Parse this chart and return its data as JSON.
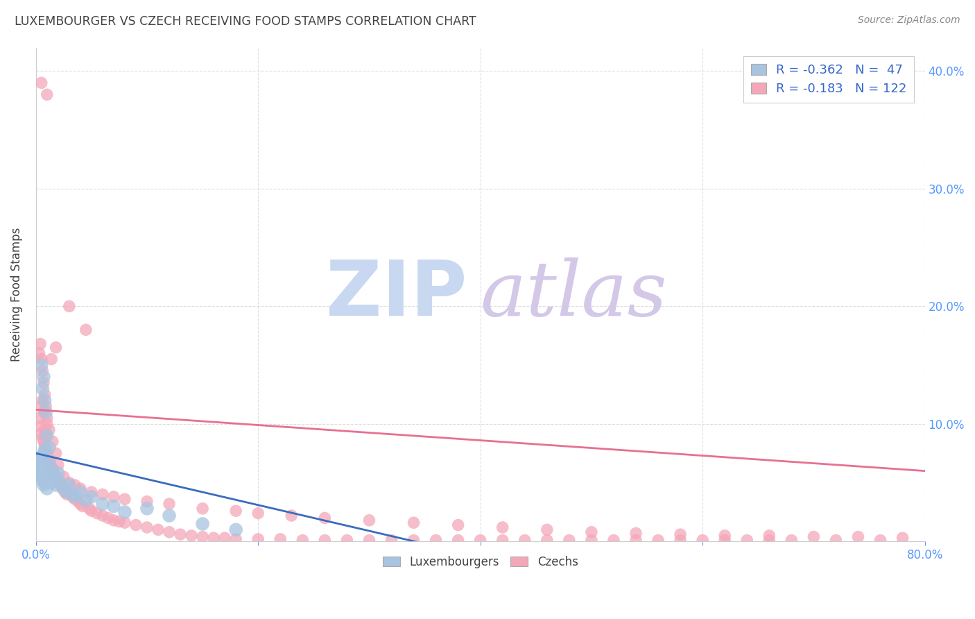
{
  "title": "LUXEMBOURGER VS CZECH RECEIVING FOOD STAMPS CORRELATION CHART",
  "source": "Source: ZipAtlas.com",
  "ylabel": "Receiving Food Stamps",
  "xlim": [
    0.0,
    0.8
  ],
  "ylim": [
    0.0,
    0.42
  ],
  "xticks": [
    0.0,
    0.2,
    0.4,
    0.6,
    0.8
  ],
  "xticklabels": [
    "0.0%",
    "",
    "",
    "",
    "80.0%"
  ],
  "yticks_right": [
    0.0,
    0.1,
    0.2,
    0.3,
    0.4
  ],
  "yticklabels_right": [
    "",
    "10.0%",
    "20.0%",
    "30.0%",
    "40.0%"
  ],
  "legend_r_lux": "-0.362",
  "legend_n_lux": "47",
  "legend_r_czech": "-0.183",
  "legend_n_czech": "122",
  "lux_color": "#a8c4e0",
  "czech_color": "#f4a7b9",
  "lux_line_color": "#3a6bbf",
  "czech_line_color": "#e87090",
  "watermark_zip": "ZIP",
  "watermark_atlas": "atlas",
  "watermark_color_zip": "#c8d8f0",
  "watermark_color_atlas": "#d4c8e8",
  "background_color": "#ffffff",
  "grid_color": "#dddddd",
  "tick_color": "#5599ff",
  "title_color": "#444444",
  "source_color": "#888888",
  "ylabel_color": "#444444",
  "legend_text_color": "#3366cc",
  "legend_edge_color": "#cccccc",
  "bottom_legend_color": "#444444",
  "lux_scatter_x": [
    0.002,
    0.003,
    0.004,
    0.004,
    0.005,
    0.005,
    0.006,
    0.006,
    0.007,
    0.007,
    0.008,
    0.008,
    0.009,
    0.01,
    0.01,
    0.011,
    0.012,
    0.013,
    0.014,
    0.015,
    0.016,
    0.017,
    0.018,
    0.02,
    0.022,
    0.025,
    0.028,
    0.03,
    0.033,
    0.036,
    0.04,
    0.045,
    0.05,
    0.06,
    0.07,
    0.08,
    0.1,
    0.12,
    0.15,
    0.18,
    0.005,
    0.006,
    0.007,
    0.008,
    0.009,
    0.01,
    0.012
  ],
  "lux_scatter_y": [
    0.065,
    0.068,
    0.07,
    0.058,
    0.072,
    0.055,
    0.06,
    0.052,
    0.075,
    0.048,
    0.078,
    0.05,
    0.062,
    0.064,
    0.045,
    0.058,
    0.068,
    0.055,
    0.05,
    0.06,
    0.052,
    0.055,
    0.048,
    0.058,
    0.05,
    0.045,
    0.042,
    0.048,
    0.04,
    0.038,
    0.042,
    0.035,
    0.038,
    0.032,
    0.03,
    0.025,
    0.028,
    0.022,
    0.015,
    0.01,
    0.15,
    0.13,
    0.14,
    0.12,
    0.11,
    0.09,
    0.08
  ],
  "czech_scatter_x": [
    0.003,
    0.004,
    0.005,
    0.005,
    0.006,
    0.006,
    0.007,
    0.007,
    0.008,
    0.008,
    0.009,
    0.009,
    0.01,
    0.01,
    0.011,
    0.012,
    0.013,
    0.014,
    0.015,
    0.016,
    0.017,
    0.018,
    0.019,
    0.02,
    0.022,
    0.024,
    0.026,
    0.028,
    0.03,
    0.033,
    0.035,
    0.038,
    0.04,
    0.042,
    0.045,
    0.048,
    0.05,
    0.055,
    0.06,
    0.065,
    0.07,
    0.075,
    0.08,
    0.09,
    0.1,
    0.11,
    0.12,
    0.13,
    0.14,
    0.15,
    0.16,
    0.17,
    0.18,
    0.2,
    0.22,
    0.24,
    0.26,
    0.28,
    0.3,
    0.32,
    0.34,
    0.36,
    0.38,
    0.4,
    0.42,
    0.44,
    0.46,
    0.48,
    0.5,
    0.52,
    0.54,
    0.56,
    0.58,
    0.6,
    0.62,
    0.64,
    0.66,
    0.68,
    0.72,
    0.76,
    0.003,
    0.004,
    0.005,
    0.006,
    0.007,
    0.008,
    0.009,
    0.01,
    0.012,
    0.015,
    0.018,
    0.02,
    0.025,
    0.03,
    0.035,
    0.04,
    0.05,
    0.06,
    0.07,
    0.08,
    0.1,
    0.12,
    0.15,
    0.18,
    0.2,
    0.23,
    0.26,
    0.3,
    0.34,
    0.38,
    0.42,
    0.46,
    0.5,
    0.54,
    0.58,
    0.62,
    0.66,
    0.7,
    0.74,
    0.78,
    0.005,
    0.01
  ],
  "czech_scatter_y": [
    0.105,
    0.098,
    0.092,
    0.115,
    0.088,
    0.12,
    0.085,
    0.11,
    0.082,
    0.095,
    0.078,
    0.09,
    0.075,
    0.1,
    0.072,
    0.068,
    0.065,
    0.155,
    0.062,
    0.059,
    0.056,
    0.165,
    0.053,
    0.05,
    0.048,
    0.045,
    0.042,
    0.04,
    0.2,
    0.038,
    0.036,
    0.034,
    0.032,
    0.03,
    0.18,
    0.028,
    0.026,
    0.024,
    0.022,
    0.02,
    0.018,
    0.017,
    0.016,
    0.014,
    0.012,
    0.01,
    0.008,
    0.006,
    0.005,
    0.004,
    0.003,
    0.003,
    0.002,
    0.002,
    0.002,
    0.001,
    0.001,
    0.001,
    0.001,
    0.001,
    0.001,
    0.001,
    0.001,
    0.001,
    0.001,
    0.001,
    0.001,
    0.001,
    0.001,
    0.001,
    0.001,
    0.001,
    0.001,
    0.001,
    0.001,
    0.001,
    0.001,
    0.001,
    0.001,
    0.001,
    0.16,
    0.168,
    0.155,
    0.145,
    0.135,
    0.125,
    0.115,
    0.105,
    0.095,
    0.085,
    0.075,
    0.065,
    0.055,
    0.05,
    0.048,
    0.045,
    0.042,
    0.04,
    0.038,
    0.036,
    0.034,
    0.032,
    0.028,
    0.026,
    0.024,
    0.022,
    0.02,
    0.018,
    0.016,
    0.014,
    0.012,
    0.01,
    0.008,
    0.007,
    0.006,
    0.005,
    0.005,
    0.004,
    0.004,
    0.003,
    0.39,
    0.38
  ]
}
